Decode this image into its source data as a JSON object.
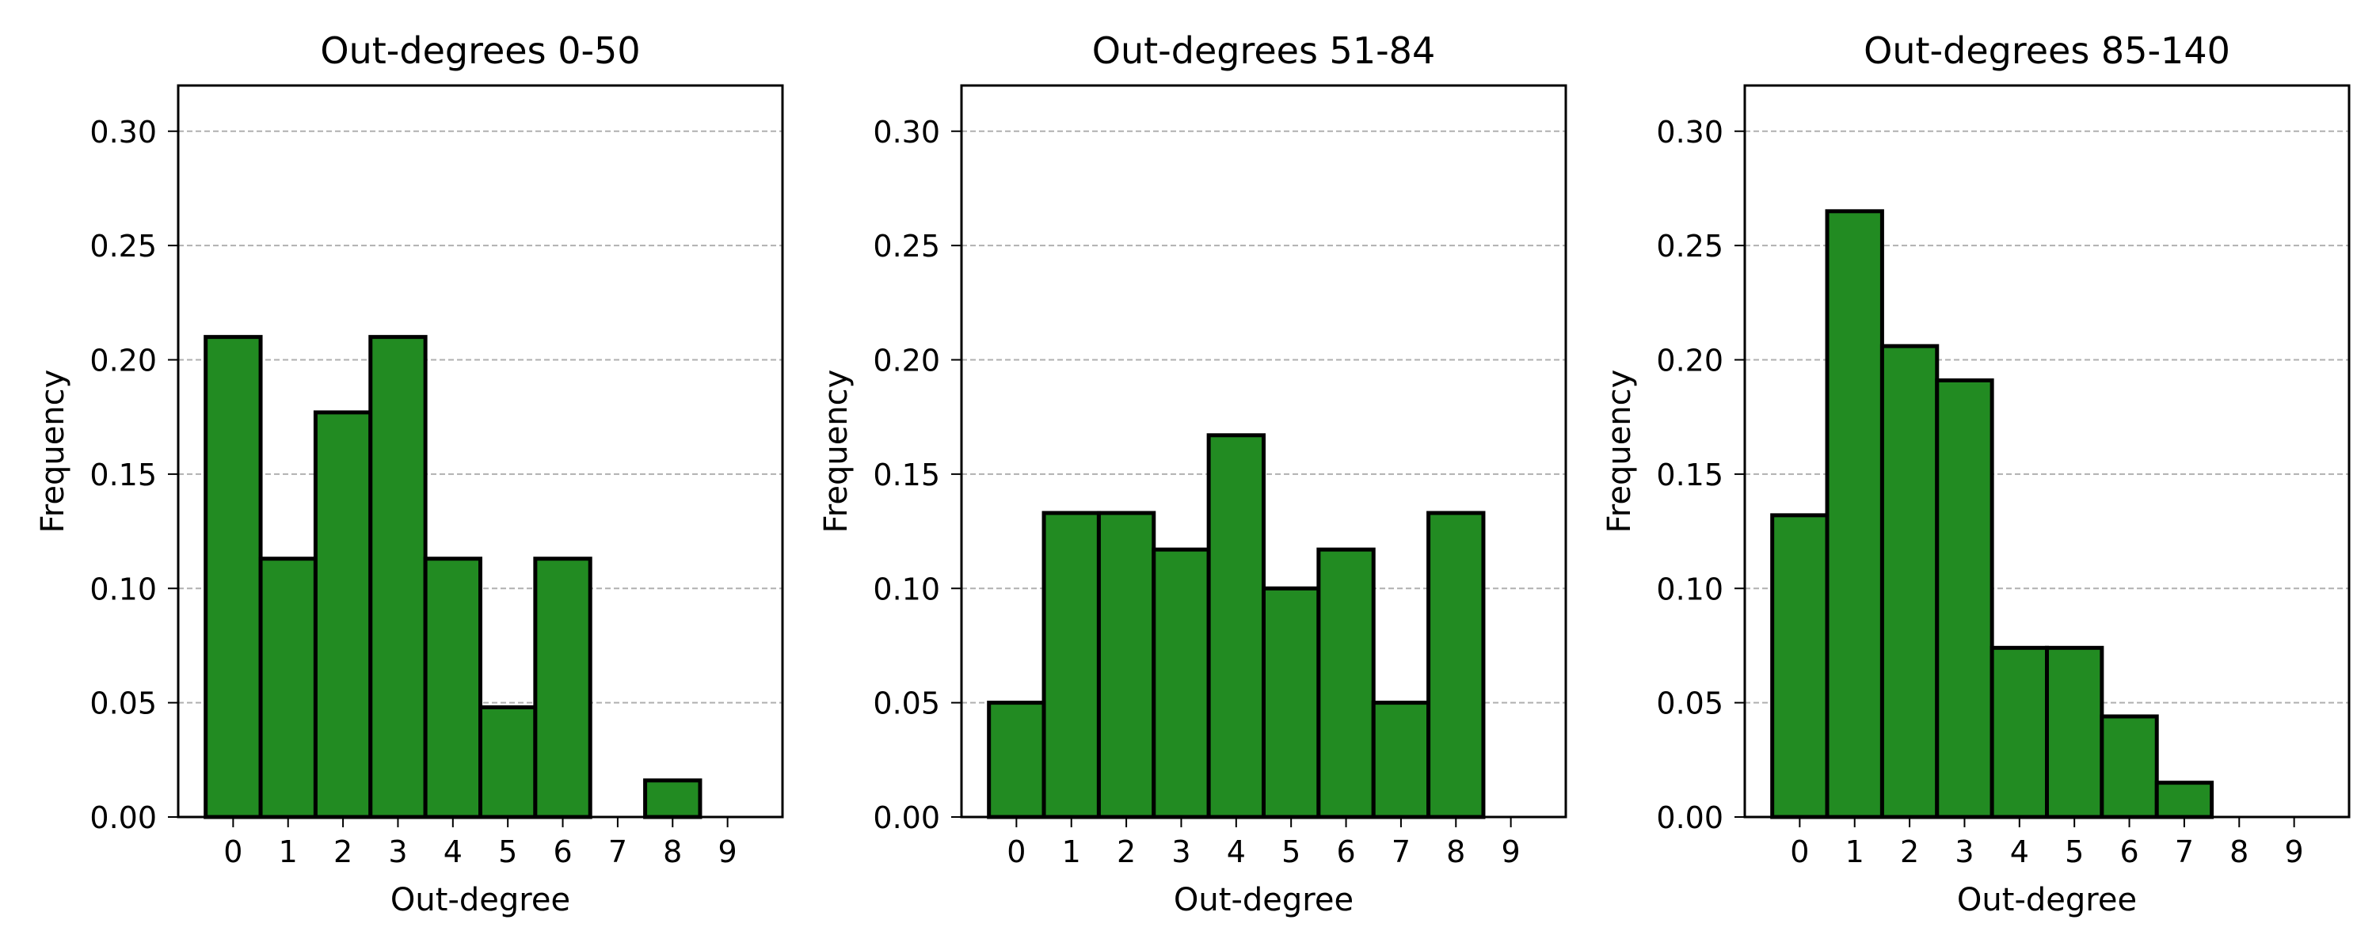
{
  "colors": {
    "bar_fill": "#228b22",
    "bar_edge": "#000000",
    "grid": "#b0b0b0",
    "background": "#ffffff"
  },
  "chart_data": [
    {
      "type": "bar",
      "title": "Out-degrees 0-50",
      "xlabel": "Out-degree",
      "ylabel": "Frequency",
      "categories": [
        "0",
        "1",
        "2",
        "3",
        "4",
        "5",
        "6",
        "7",
        "8",
        "9"
      ],
      "values": [
        0.21,
        0.113,
        0.177,
        0.21,
        0.113,
        0.048,
        0.113,
        0.0,
        0.016,
        0.0
      ],
      "ylim": [
        0,
        0.32
      ],
      "yticks": [
        "0.00",
        "0.05",
        "0.10",
        "0.15",
        "0.20",
        "0.25",
        "0.30"
      ],
      "grid": "horizontal dashed",
      "legend": "none"
    },
    {
      "type": "bar",
      "title": "Out-degrees 51-84",
      "xlabel": "Out-degree",
      "ylabel": "Frequency",
      "categories": [
        "0",
        "1",
        "2",
        "3",
        "4",
        "5",
        "6",
        "7",
        "8",
        "9"
      ],
      "values": [
        0.05,
        0.133,
        0.133,
        0.117,
        0.167,
        0.1,
        0.117,
        0.05,
        0.133,
        0.0
      ],
      "ylim": [
        0,
        0.32
      ],
      "yticks": [
        "0.00",
        "0.05",
        "0.10",
        "0.15",
        "0.20",
        "0.25",
        "0.30"
      ],
      "grid": "horizontal dashed",
      "legend": "none"
    },
    {
      "type": "bar",
      "title": "Out-degrees 85-140",
      "xlabel": "Out-degree",
      "ylabel": "Frequency",
      "categories": [
        "0",
        "1",
        "2",
        "3",
        "4",
        "5",
        "6",
        "7",
        "8",
        "9"
      ],
      "values": [
        0.132,
        0.265,
        0.206,
        0.191,
        0.074,
        0.074,
        0.044,
        0.015,
        0.0,
        0.0
      ],
      "ylim": [
        0,
        0.32
      ],
      "yticks": [
        "0.00",
        "0.05",
        "0.10",
        "0.15",
        "0.20",
        "0.25",
        "0.30"
      ],
      "grid": "horizontal dashed",
      "legend": "none"
    }
  ]
}
